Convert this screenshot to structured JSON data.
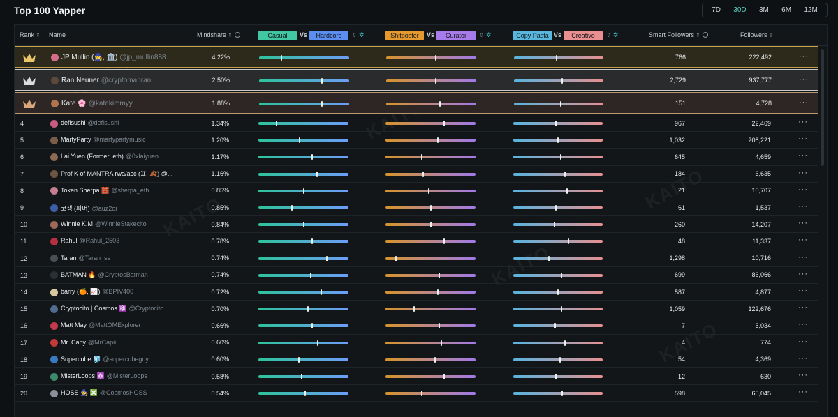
{
  "title": "Top 100 Yapper",
  "periods": [
    "7D",
    "30D",
    "3M",
    "6M",
    "12M"
  ],
  "active_period": "30D",
  "columns": {
    "rank": "Rank",
    "name": "Name",
    "mindshare": "Mindshare",
    "casual": "Casual",
    "hardcore": "Hardcore",
    "shitposter": "Shitposter",
    "curator": "Curator",
    "copy_pasta": "Copy Pasta",
    "creative": "Creative",
    "vs": "Vs",
    "smart_followers": "Smart Followers",
    "followers": "Followers",
    "sort_glyph": "⇕"
  },
  "watermark": "KAITO",
  "more_glyph": "···",
  "colors": {
    "casual": "#41c7a4",
    "hardcore": "#5b8ef0",
    "shitposter": "#e49a2c",
    "curator": "#a77cea",
    "copy_pasta": "#59b6dd",
    "creative": "#e98f90",
    "active_period": "#58d3c5",
    "gold_border": "#c8a24a"
  },
  "rows": [
    {
      "rank": "1",
      "name": "JP Mullin (🧙, 🏛️)",
      "handle": "@jp_mullin888",
      "mindshare": "4.22%",
      "smart_followers": "766",
      "followers": "222,492",
      "bars": [
        0.25,
        0.55,
        0.48
      ],
      "avatar": "#d76b8a",
      "crown": "gold"
    },
    {
      "rank": "2",
      "name": "Ran Neuner",
      "handle": "@cryptomanran",
      "mindshare": "2.50%",
      "smart_followers": "2,729",
      "followers": "937,777",
      "bars": [
        0.7,
        0.55,
        0.54
      ],
      "avatar": "#5b4a3c",
      "crown": "silver"
    },
    {
      "rank": "3",
      "name": "Kate 🌸",
      "handle": "@katekimmyy",
      "mindshare": "1.88%",
      "smart_followers": "151",
      "followers": "4,728",
      "bars": [
        0.7,
        0.6,
        0.52
      ],
      "avatar": "#b0744e",
      "crown": "bronze"
    },
    {
      "rank": "4",
      "name": "defisushi",
      "handle": "@defisushi",
      "mindshare": "1.34%",
      "smart_followers": "967",
      "followers": "22,469",
      "bars": [
        0.2,
        0.65,
        0.48
      ],
      "avatar": "#c85b80"
    },
    {
      "rank": "5",
      "name": "MartyParty",
      "handle": "@martypartymusic",
      "mindshare": "1.20%",
      "smart_followers": "1,032",
      "followers": "208,221",
      "bars": [
        0.46,
        0.58,
        0.5
      ],
      "avatar": "#7a5d49"
    },
    {
      "rank": "6",
      "name": "Lai Yuen (Former .eth)",
      "handle": "@0xlaiyuen",
      "mindshare": "1.17%",
      "smart_followers": "645",
      "followers": "4,659",
      "bars": [
        0.6,
        0.4,
        0.53
      ],
      "avatar": "#8a6a52"
    },
    {
      "rank": "7",
      "name": "Prof K of MANTRA rwa/acc (♊, 🍂) @...",
      "handle": "",
      "mindshare": "1.16%",
      "smart_followers": "184",
      "followers": "6,635",
      "bars": [
        0.65,
        0.42,
        0.58
      ],
      "avatar": "#6e5645"
    },
    {
      "rank": "8",
      "name": "Token Sherpa 🧱",
      "handle": "@sherpa_eth",
      "mindshare": "0.85%",
      "smart_followers": "21",
      "followers": "10,707",
      "bars": [
        0.5,
        0.48,
        0.6
      ],
      "avatar": "#c57d92"
    },
    {
      "rank": "9",
      "name": "코생 (파머)",
      "handle": "@auz2or",
      "mindshare": "0.85%",
      "smart_followers": "61",
      "followers": "1,537",
      "bars": [
        0.37,
        0.5,
        0.48
      ],
      "avatar": "#3c5ea8"
    },
    {
      "rank": "10",
      "name": "Winnie K.M",
      "handle": "@WinnieStakecito",
      "mindshare": "0.84%",
      "smart_followers": "260",
      "followers": "14,207",
      "bars": [
        0.5,
        0.5,
        0.46
      ],
      "avatar": "#9b6a58"
    },
    {
      "rank": "11",
      "name": "Rahul",
      "handle": "@Rahul_2503",
      "mindshare": "0.78%",
      "smart_followers": "48",
      "followers": "11,337",
      "bars": [
        0.6,
        0.65,
        0.62
      ],
      "avatar": "#b23040"
    },
    {
      "rank": "12",
      "name": "Taran",
      "handle": "@Taran_ss",
      "mindshare": "0.74%",
      "smart_followers": "1,298",
      "followers": "10,716",
      "bars": [
        0.76,
        0.12,
        0.4
      ],
      "avatar": "#4a4f56"
    },
    {
      "rank": "13",
      "name": "BATMAN 🔥",
      "handle": "@CryptosBatman",
      "mindshare": "0.74%",
      "smart_followers": "699",
      "followers": "86,066",
      "bars": [
        0.58,
        0.6,
        0.54
      ],
      "avatar": "#2a2f36"
    },
    {
      "rank": "14",
      "name": "barry (🍊, 📈)",
      "handle": "@BPIV400",
      "mindshare": "0.72%",
      "smart_followers": "587",
      "followers": "4,877",
      "bars": [
        0.7,
        0.58,
        0.5
      ],
      "avatar": "#d4c7a0"
    },
    {
      "rank": "15",
      "name": "Cryptocito | Cosmos ⚛️",
      "handle": "@Cryptocito",
      "mindshare": "0.70%",
      "smart_followers": "1,059",
      "followers": "122,676",
      "bars": [
        0.55,
        0.32,
        0.54
      ],
      "avatar": "#4f6b8e"
    },
    {
      "rank": "16",
      "name": "Matt May",
      "handle": "@MattOMExplorer",
      "mindshare": "0.66%",
      "smart_followers": "7",
      "followers": "5,034",
      "bars": [
        0.6,
        0.6,
        0.47
      ],
      "avatar": "#c23a4c"
    },
    {
      "rank": "17",
      "name": "Mr. Capy",
      "handle": "@MrCapii",
      "mindshare": "0.60%",
      "smart_followers": "4",
      "followers": "774",
      "bars": [
        0.66,
        0.62,
        0.58
      ],
      "avatar": "#c33a3a"
    },
    {
      "rank": "18",
      "name": "Supercube 🧊",
      "handle": "@supercubeguy",
      "mindshare": "0.60%",
      "smart_followers": "54",
      "followers": "4,369",
      "bars": [
        0.45,
        0.55,
        0.52
      ],
      "avatar": "#3a78c0"
    },
    {
      "rank": "19",
      "name": "MisterLoops ⚛️",
      "handle": "@MisterLoops",
      "mindshare": "0.58%",
      "smart_followers": "12",
      "followers": "630",
      "bars": [
        0.48,
        0.65,
        0.48
      ],
      "avatar": "#3c8a6a"
    },
    {
      "rank": "20",
      "name": "HOSS 🧙 ❎",
      "handle": "@CosmosHOSS",
      "mindshare": "0.54%",
      "smart_followers": "598",
      "followers": "65,045",
      "bars": [
        0.52,
        0.4,
        0.55
      ],
      "avatar": "#8a8f99"
    }
  ]
}
